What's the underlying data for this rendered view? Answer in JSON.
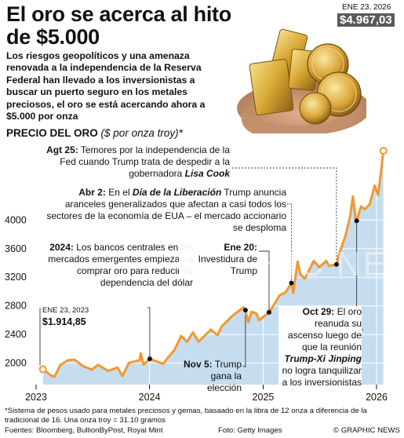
{
  "header": {
    "headline": "El oro se acerca al hito de $5.000",
    "intro": "Los riesgos geopolíticos y una amenaza renovada a la independencia de la Reserva Federal han llevado a los inversionistas a buscar un puerto seguro en los metales preciosos, el oro se está acercando ahora a $5.000 por onza"
  },
  "photo": {
    "description_icon": "gold-bars-and-coins-photo"
  },
  "chart_data": {
    "type": "area",
    "title": "PRECIO DEL ORO",
    "subtitle": "($ por onza troy)*",
    "ylim": [
      1700,
      5100
    ],
    "yticks": [
      2000,
      2400,
      2800,
      3200,
      3600,
      4000
    ],
    "xticks": [
      "2023",
      "2024",
      "2025",
      "2026"
    ],
    "grid": true,
    "colors": {
      "line": "#f2982f",
      "fill": "#c5ddef",
      "grid": "#ffffff",
      "leader": "#333333"
    },
    "series": [
      {
        "x": [
          "2023-01-23",
          "2023-02-15",
          "2023-03-01",
          "2023-03-20",
          "2023-04-13",
          "2023-05-04",
          "2023-06-01",
          "2023-06-29",
          "2023-07-20",
          "2023-08-21",
          "2023-09-20",
          "2023-10-06",
          "2023-10-27",
          "2023-11-30",
          "2023-12-04",
          "2023-12-13",
          "2024-01-02",
          "2024-02-14",
          "2024-03-01",
          "2024-03-21",
          "2024-04-12",
          "2024-05-01",
          "2024-05-20",
          "2024-06-07",
          "2024-07-17",
          "2024-08-07",
          "2024-08-20",
          "2024-09-26",
          "2024-10-30",
          "2024-11-05",
          "2024-11-14",
          "2024-11-25",
          "2024-12-11",
          "2024-12-19",
          "2025-01-02",
          "2025-01-20",
          "2025-02-24",
          "2025-03-14",
          "2025-04-02",
          "2025-04-08",
          "2025-04-22",
          "2025-05-01",
          "2025-05-15",
          "2025-06-13",
          "2025-07-01",
          "2025-07-23",
          "2025-08-01",
          "2025-08-25",
          "2025-09-02",
          "2025-09-23",
          "2025-10-08",
          "2025-10-17",
          "2025-10-28",
          "2025-10-29",
          "2025-11-12",
          "2025-11-25",
          "2025-12-10",
          "2025-12-26",
          "2026-01-06",
          "2026-01-14",
          "2026-01-23"
        ],
        "y": [
          1914.85,
          1835,
          1810,
          1975,
          2040,
          2050,
          1960,
          1910,
          1975,
          1890,
          1940,
          1820,
          2005,
          2040,
          2135,
          1980,
          2060,
          1990,
          2080,
          2180,
          2380,
          2300,
          2430,
          2300,
          2470,
          2390,
          2510,
          2670,
          2780,
          2740,
          2570,
          2720,
          2690,
          2600,
          2650,
          2710,
          2950,
          2990,
          3120,
          2980,
          3420,
          3240,
          3180,
          3430,
          3340,
          3430,
          3360,
          3380,
          3520,
          3780,
          4050,
          4330,
          3950,
          3990,
          4190,
          4150,
          4220,
          4480,
          4350,
          4620,
          4967.03
        ]
      }
    ],
    "start_point": {
      "date": "ENE 23, 2023",
      "value": "$1.914,85"
    },
    "end_point": {
      "date": "ENE 23, 2026",
      "value": "$4.967,03"
    }
  },
  "annotations": {
    "agt25": {
      "date": "Agt 25:",
      "text_before": " Temores por la independencia de la Fed cuando Trump trata de despedir a la gobernadora ",
      "emph": "Lisa Cook",
      "date_value": "2025-08-25"
    },
    "abr2": {
      "date": "Abr 2:",
      "text_before": " En el ",
      "emph": "Día de la Liberación",
      "text_after": " Trump anuncia aranceles generalizados que afectan a casi todos los sectores de la economía de EUA – el mercado accionario se desploma",
      "date_value": "2025-04-02"
    },
    "y2024": {
      "date": "2024:",
      "text_before": " Los bancos centrales en los mercados emergentes empiezan a comprar oro para reducir su dependencia del dólar",
      "date_value": "2024-01-02"
    },
    "ene20": {
      "date": "Ene 20:",
      "text_before": " Investidura de Trump",
      "date_value": "2025-01-20"
    },
    "nov5": {
      "date": "Nov 5:",
      "text_before": " Trump gana la elección",
      "date_value": "2024-11-05"
    },
    "oct29": {
      "date": "Oct 29:",
      "text_before": " El oro reanuda su ascenso luego de que la reunión ",
      "emph": "Trump-Xi Jinping",
      "text_after": " no logra tanquilizar a los inversionistas",
      "date_value": "2025-10-29"
    }
  },
  "footer": {
    "footnote": "*Sistema de pesos usado para metales preciosos y gemas, basaado en la libra de 12 onza a diferencia de la tradicional de 16. Una onza troy = 31.10 gramos",
    "sources": "Fuentes: Bloomberg, BullionByPost, Royal Mint",
    "photo_credit": "Foto: Getty Images",
    "brand": "© GRAPHIC NEWS",
    "watermark": "GRAPHIC NEWS"
  }
}
